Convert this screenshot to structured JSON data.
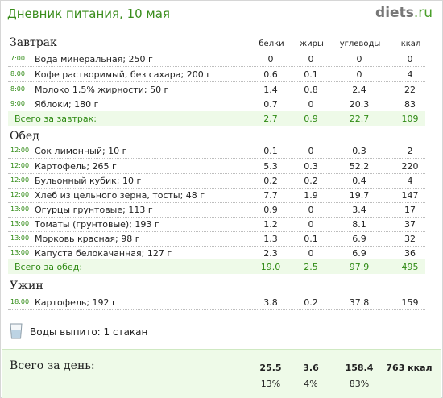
{
  "header": {
    "title": "Дневник питания, 10 мая",
    "logo_main": "diets",
    "logo_ext": ".ru"
  },
  "columns": {
    "protein": "белки",
    "fat": "жиры",
    "carbs": "углеводы",
    "kcal": "ккал"
  },
  "breakfast": {
    "title": "Завтрак",
    "rows": [
      {
        "time": "7:00",
        "name": "Вода минеральная; 250 г",
        "protein": "0",
        "fat": "0",
        "carbs": "0",
        "kcal": "0"
      },
      {
        "time": "8:00",
        "name": "Кофе растворимый, без сахара; 200 г",
        "protein": "0.6",
        "fat": "0.1",
        "carbs": "0",
        "kcal": "4"
      },
      {
        "time": "8:00",
        "name": "Молоко 1,5% жирности; 50 г",
        "protein": "1.4",
        "fat": "0.8",
        "carbs": "2.4",
        "kcal": "22"
      },
      {
        "time": "9:00",
        "name": "Яблоки; 180 г",
        "protein": "0.7",
        "fat": "0",
        "carbs": "20.3",
        "kcal": "83"
      }
    ],
    "total": {
      "label": "Всего за завтрак:",
      "protein": "2.7",
      "fat": "0.9",
      "carbs": "22.7",
      "kcal": "109"
    }
  },
  "lunch": {
    "title": "Обед",
    "rows": [
      {
        "time": "12:00",
        "name": "Сок лимонный; 10 г",
        "protein": "0.1",
        "fat": "0",
        "carbs": "0.3",
        "kcal": "2"
      },
      {
        "time": "12:00",
        "name": "Картофель; 265 г",
        "protein": "5.3",
        "fat": "0.3",
        "carbs": "52.2",
        "kcal": "220"
      },
      {
        "time": "12:00",
        "name": "Бульонный кубик; 10 г",
        "protein": "0.2",
        "fat": "0.2",
        "carbs": "0.4",
        "kcal": "4"
      },
      {
        "time": "12:00",
        "name": "Хлеб из цельного зерна, тосты; 48 г",
        "protein": "7.7",
        "fat": "1.9",
        "carbs": "19.7",
        "kcal": "147"
      },
      {
        "time": "13:00",
        "name": "Огурцы грунтовые; 113 г",
        "protein": "0.9",
        "fat": "0",
        "carbs": "3.4",
        "kcal": "17"
      },
      {
        "time": "13:00",
        "name": "Томаты (грунтовые); 193 г",
        "protein": "1.2",
        "fat": "0",
        "carbs": "8.1",
        "kcal": "37"
      },
      {
        "time": "13:00",
        "name": "Морковь красная; 98 г",
        "protein": "1.3",
        "fat": "0.1",
        "carbs": "6.9",
        "kcal": "32"
      },
      {
        "time": "13:00",
        "name": "Капуста белокачанная; 127 г",
        "protein": "2.3",
        "fat": "0",
        "carbs": "6.9",
        "kcal": "36"
      }
    ],
    "total": {
      "label": "Всего за обед:",
      "protein": "19.0",
      "fat": "2.5",
      "carbs": "97.9",
      "kcal": "495"
    }
  },
  "dinner": {
    "title": "Ужин",
    "rows": [
      {
        "time": "18:00",
        "name": "Картофель; 192 г",
        "protein": "3.8",
        "fat": "0.2",
        "carbs": "37.8",
        "kcal": "159"
      }
    ]
  },
  "water": {
    "icon": "water-glass-icon",
    "text": "Воды выпито: 1 стакан"
  },
  "day_total": {
    "label": "Всего за день:",
    "protein": "25.5",
    "fat": "3.6",
    "carbs": "158.4",
    "kcal": "763 ккал",
    "protein_pct": "13%",
    "fat_pct": "4%",
    "carbs_pct": "83%"
  },
  "colors": {
    "accent_green": "#3a8d1c",
    "total_bg": "#eefae8"
  }
}
